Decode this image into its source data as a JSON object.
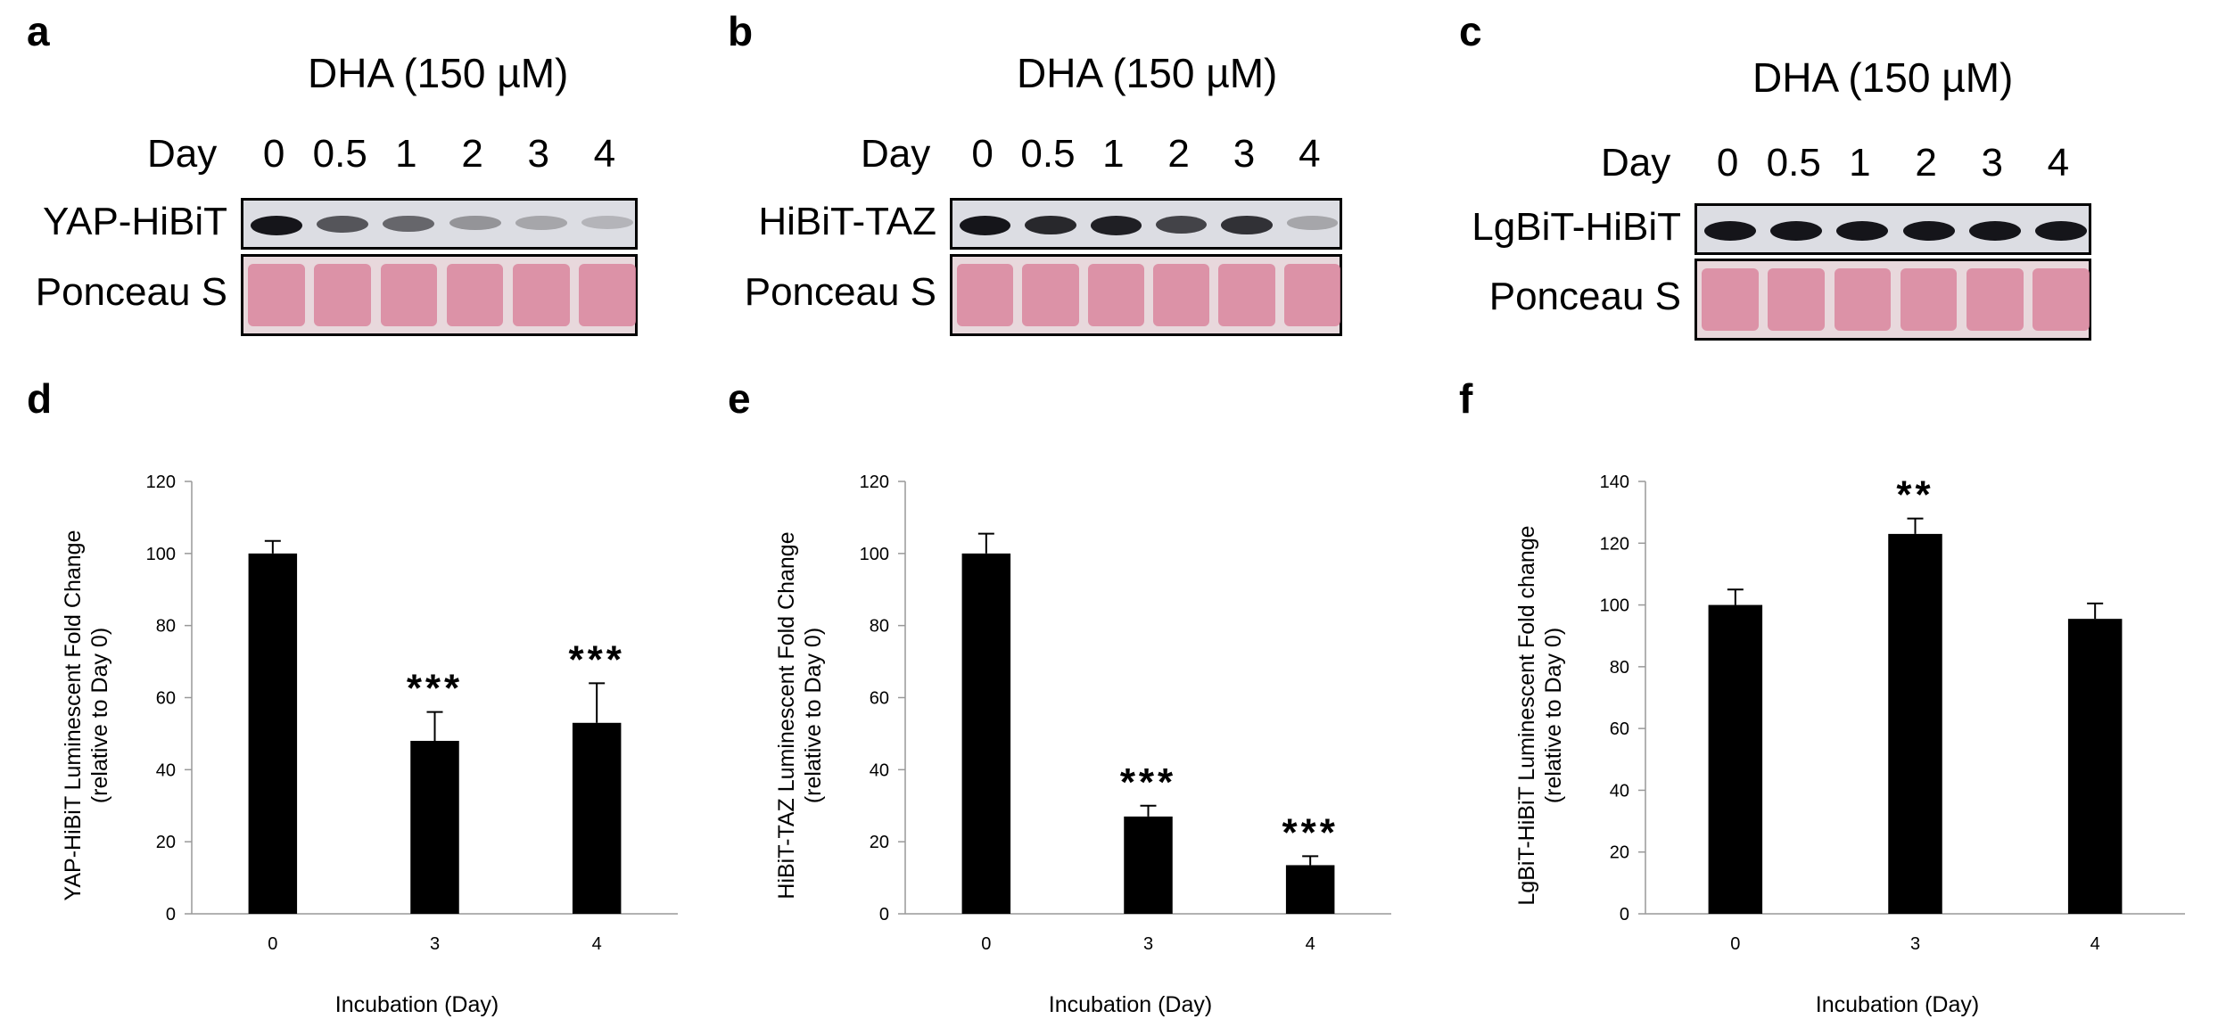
{
  "panels": {
    "a": {
      "letter": "a",
      "treatment": "DHA (150 µM)",
      "day_label": "Day",
      "lanes": [
        "0",
        "0.5",
        "1",
        "2",
        "3",
        "4"
      ],
      "row1_label": "YAP-HiBiT",
      "row2_label": "Ponceau S",
      "band_intensity": [
        1.0,
        0.65,
        0.55,
        0.3,
        0.2,
        0.12
      ]
    },
    "b": {
      "letter": "b",
      "treatment": "DHA (150 µM)",
      "day_label": "Day",
      "lanes": [
        "0",
        "0.5",
        "1",
        "2",
        "3",
        "4"
      ],
      "row1_label": "HiBiT-TAZ",
      "row2_label": "Ponceau S",
      "band_intensity": [
        1.0,
        0.9,
        0.95,
        0.75,
        0.85,
        0.2
      ]
    },
    "c": {
      "letter": "c",
      "treatment": "DHA (150 µM)",
      "day_label": "Day",
      "lanes": [
        "0",
        "0.5",
        "1",
        "2",
        "3",
        "4"
      ],
      "row1_label": "LgBiT-HiBiT",
      "row2_label": "Ponceau S",
      "band_intensity": [
        1.0,
        1.0,
        1.0,
        1.0,
        1.0,
        1.0
      ]
    },
    "d": {
      "letter": "d"
    },
    "e": {
      "letter": "e"
    },
    "f": {
      "letter": "f"
    }
  },
  "colors": {
    "bar": "#000000",
    "ponceau": "#d9869d",
    "blot_bg": "#dcdde3"
  },
  "chart_data": [
    {
      "id": "d",
      "type": "bar",
      "categories": [
        "0",
        "3",
        "4"
      ],
      "values": [
        100,
        48,
        53
      ],
      "errors": [
        3.5,
        8,
        11
      ],
      "significance": [
        "",
        "***",
        "***"
      ],
      "xlabel": "Incubation (Day)",
      "ylabel_line1": "YAP-HiBiT Luminescent Fold Change",
      "ylabel_line2": "(relative to Day 0)",
      "ylim": [
        0,
        120
      ],
      "yticks": [
        0,
        20,
        40,
        60,
        80,
        100,
        120
      ],
      "grid": false
    },
    {
      "id": "e",
      "type": "bar",
      "categories": [
        "0",
        "3",
        "4"
      ],
      "values": [
        100,
        27,
        13.5
      ],
      "errors": [
        5.5,
        3,
        2.5
      ],
      "significance": [
        "",
        "***",
        "***"
      ],
      "xlabel": "Incubation (Day)",
      "ylabel_line1": "HiBiT-TAZ Luminescent Fold Change",
      "ylabel_line2": "(relative to Day 0)",
      "ylim": [
        0,
        120
      ],
      "yticks": [
        0,
        20,
        40,
        60,
        80,
        100,
        120
      ],
      "grid": false
    },
    {
      "id": "f",
      "type": "bar",
      "categories": [
        "0",
        "3",
        "4"
      ],
      "values": [
        100,
        123,
        95.5
      ],
      "errors": [
        5,
        5,
        5
      ],
      "significance": [
        "",
        "**",
        ""
      ],
      "xlabel": "Incubation (Day)",
      "ylabel_line1": "LgBiT-HiBiT Luminescent Fold change",
      "ylabel_line2": "(relative to Day 0)",
      "ylim": [
        0,
        140
      ],
      "yticks": [
        0,
        20,
        40,
        60,
        80,
        100,
        120,
        140
      ],
      "grid": false
    }
  ]
}
